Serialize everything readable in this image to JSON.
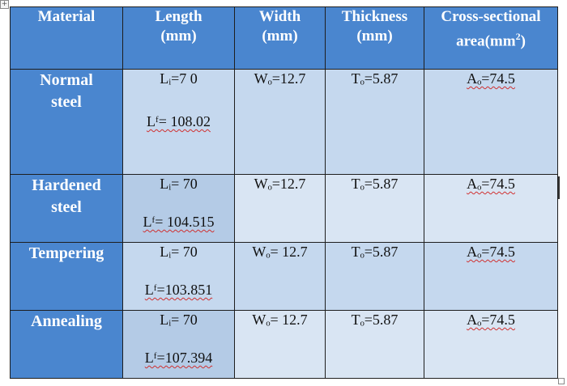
{
  "table": {
    "headers": [
      {
        "line1": "Material",
        "line2": ""
      },
      {
        "line1": "Length",
        "line2": "(mm)"
      },
      {
        "line1": "Width",
        "line2": "(mm)"
      },
      {
        "line1": "Thickness",
        "line2": "(mm)"
      },
      {
        "line1": "Cross-sectional",
        "line2": "area(mm",
        "sup": "2",
        "close": ")"
      }
    ],
    "rows": [
      {
        "material_line1": "Normal",
        "material_line2": "steel",
        "length_initial": "Lᵢ=7 0",
        "length_final": "Lᶠ= 108.02",
        "width": "Wₒ=12.7",
        "thickness": "Tₒ=5.87",
        "area": "Aₒ=74.5"
      },
      {
        "material_line1": "Hardened",
        "material_line2": "steel",
        "length_initial": "Lᵢ= 70",
        "length_final": "Lᶠ= 104.515",
        "width": "Wₒ=12.7",
        "thickness": "Tₒ=5.87",
        "area": "Aₒ=74.5"
      },
      {
        "material_line1": "Tempering",
        "material_line2": "",
        "length_initial": "Lᵢ= 70",
        "length_final": "Lᶠ=103.851",
        "width": "Wₒ= 12.7",
        "thickness": "Tₒ=5.87",
        "area": "Aₒ=74.5"
      },
      {
        "material_line1": "Annealing",
        "material_line2": "",
        "length_initial": "Lᵢ= 70",
        "length_final": "Lᶠ=107.394",
        "width": "Wₒ= 12.7",
        "thickness": "Tₒ=5.87",
        "area": "Aₒ=74.5"
      }
    ]
  },
  "colors": {
    "header_blue": "#4a86cf",
    "row_light": "#c5d8ee",
    "row_dark": "#b4cbe6"
  },
  "icons": {
    "move_handle": "move-icon",
    "resize_handle": "resize-icon"
  }
}
